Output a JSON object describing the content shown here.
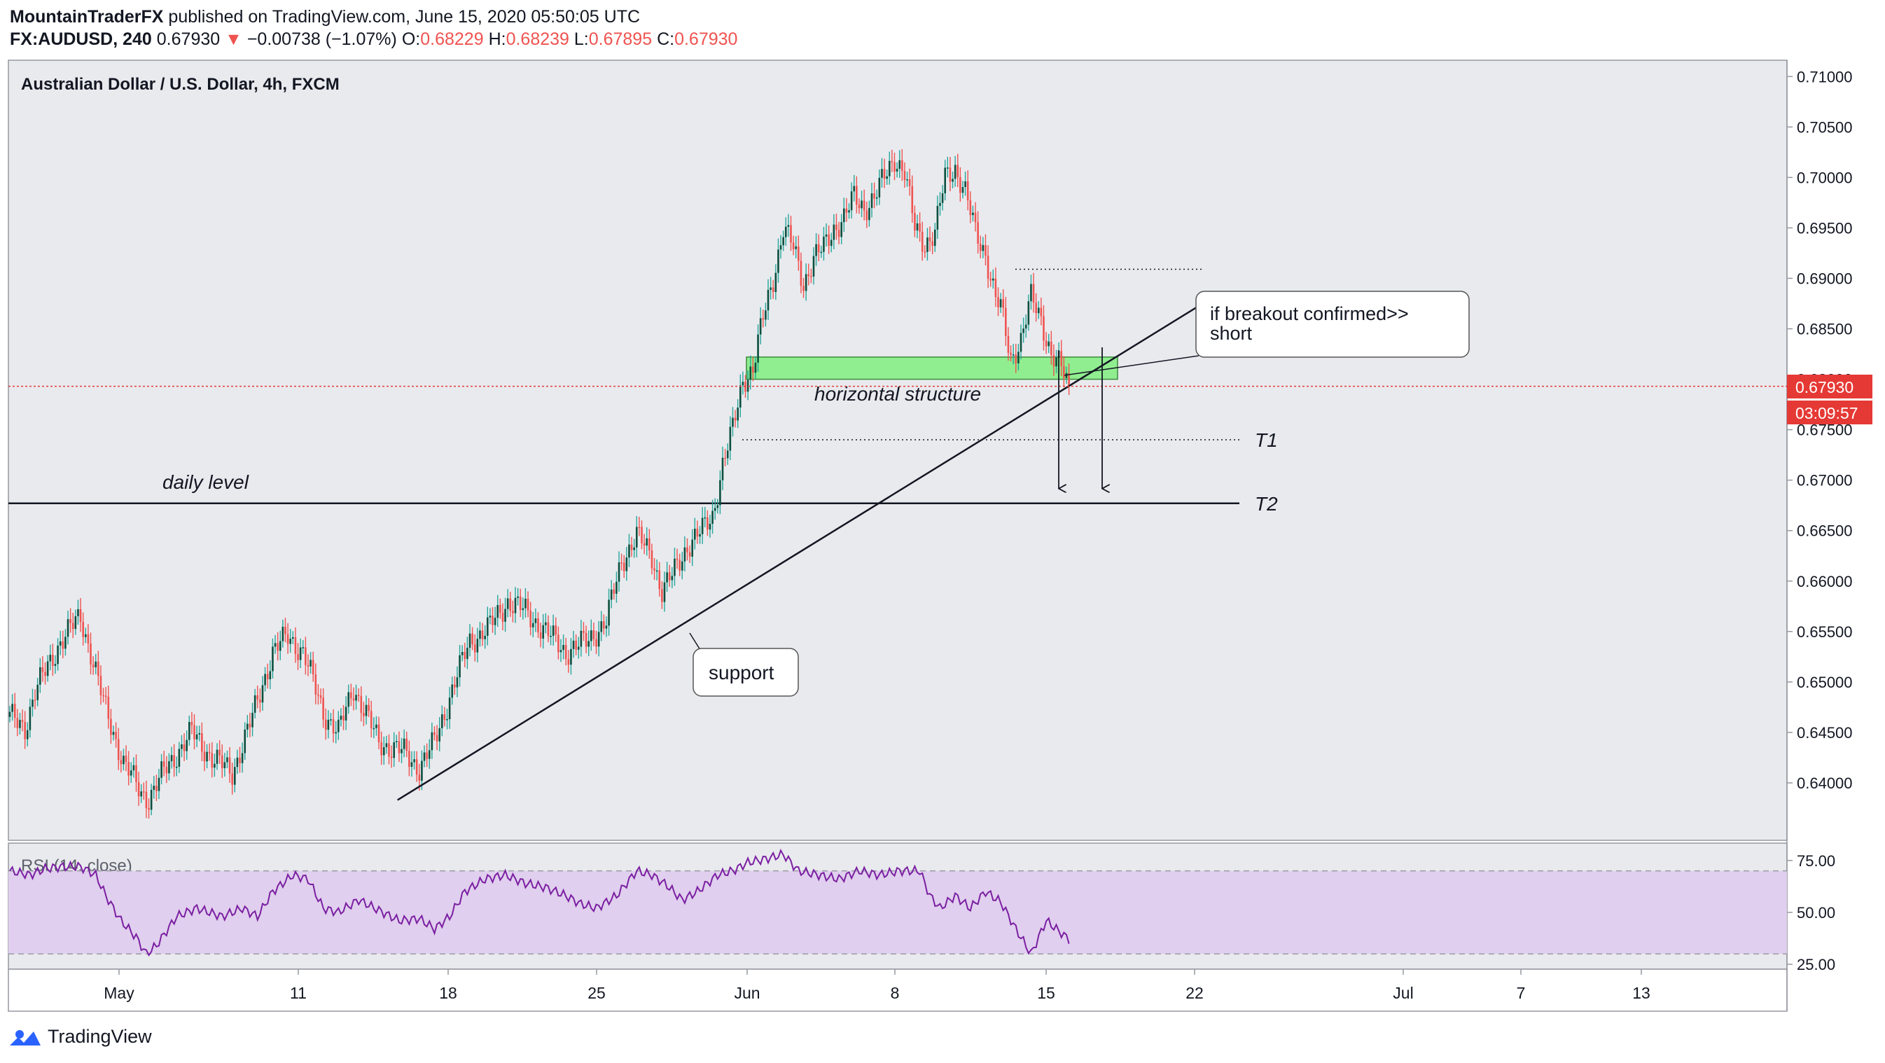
{
  "header": {
    "publisher": "MountainTraderFX",
    "published_text": "published on TradingView.com, June 15, 2020 05:50:05 UTC",
    "symbol": "FX:AUDUSD, 240",
    "last": "0.67930",
    "change": "−0.00738 (−1.07%)",
    "open_label": "O:",
    "open": "0.68229",
    "high_label": "H:",
    "high": "0.68239",
    "low_label": "L:",
    "low": "0.67895",
    "close_label": "C:",
    "close": "0.67930"
  },
  "footer": {
    "brand": "TradingView"
  },
  "colors": {
    "up": "#26a69a",
    "up_body": "#0b4f3e",
    "down": "#ef5350",
    "pane_bg": "#e9eaee",
    "rsi_line": "#7b1fa2",
    "rsi_band": "#e2d3ee",
    "green_zone": "#90ee90"
  },
  "chart_data": [
    {
      "type": "candlestick",
      "title": "Australian Dollar / U.S. Dollar, 4h, FXCM",
      "ylim": [
        0.635,
        0.7112
      ],
      "y_ticks": [
        "0.71000",
        "0.70500",
        "0.70000",
        "0.69500",
        "0.69000",
        "0.68500",
        "0.68000",
        "0.67500",
        "0.67000",
        "0.66500",
        "0.66000",
        "0.65500",
        "0.65000",
        "0.64500",
        "0.64000"
      ],
      "x_ticks": [
        "May",
        "11",
        "18",
        "25",
        "Jun",
        "8",
        "15",
        "22",
        "Jul",
        "7",
        "13"
      ],
      "current_price_label": "0.67930",
      "countdown_label": "03:09:57",
      "current_price": 0.6793,
      "anchors": [
        [
          0,
          0.6465
        ],
        [
          6,
          0.6455
        ],
        [
          10,
          0.649
        ],
        [
          20,
          0.654
        ],
        [
          28,
          0.6565
        ],
        [
          33,
          0.652
        ],
        [
          37,
          0.648
        ],
        [
          45,
          0.642
        ],
        [
          52,
          0.639
        ],
        [
          55,
          0.6385
        ],
        [
          62,
          0.6415
        ],
        [
          72,
          0.645
        ],
        [
          80,
          0.6425
        ],
        [
          88,
          0.641
        ],
        [
          96,
          0.6465
        ],
        [
          104,
          0.653
        ],
        [
          110,
          0.6545
        ],
        [
          116,
          0.653
        ],
        [
          124,
          0.647
        ],
        [
          130,
          0.645
        ],
        [
          136,
          0.6495
        ],
        [
          146,
          0.644
        ],
        [
          156,
          0.643
        ],
        [
          162,
          0.6415
        ],
        [
          168,
          0.644
        ],
        [
          176,
          0.65
        ],
        [
          182,
          0.654
        ],
        [
          190,
          0.6555
        ],
        [
          197,
          0.658
        ],
        [
          204,
          0.657
        ],
        [
          212,
          0.655
        ],
        [
          220,
          0.653
        ],
        [
          228,
          0.654
        ],
        [
          236,
          0.656
        ],
        [
          242,
          0.662
        ],
        [
          248,
          0.6645
        ],
        [
          254,
          0.6625
        ],
        [
          258,
          0.659
        ],
        [
          262,
          0.6605
        ],
        [
          268,
          0.6635
        ],
        [
          274,
          0.665
        ],
        [
          278,
          0.6665
        ],
        [
          282,
          0.6715
        ],
        [
          286,
          0.675
        ],
        [
          290,
          0.68
        ],
        [
          294,
          0.681
        ],
        [
          298,
          0.686
        ],
        [
          302,
          0.69
        ],
        [
          306,
          0.695
        ],
        [
          310,
          0.693
        ],
        [
          314,
          0.6895
        ],
        [
          318,
          0.692
        ],
        [
          322,
          0.693
        ],
        [
          326,
          0.695
        ],
        [
          330,
          0.696
        ],
        [
          334,
          0.698
        ],
        [
          338,
          0.697
        ],
        [
          342,
          0.698
        ],
        [
          346,
          0.7
        ],
        [
          350,
          0.702
        ],
        [
          354,
          0.7005
        ],
        [
          358,
          0.695
        ],
        [
          362,
          0.6935
        ],
        [
          366,
          0.6945
        ],
        [
          370,
          0.7
        ],
        [
          374,
          0.701
        ],
        [
          378,
          0.6985
        ],
        [
          382,
          0.6945
        ],
        [
          386,
          0.6925
        ],
        [
          390,
          0.688
        ],
        [
          392,
          0.687
        ],
        [
          396,
          0.682
        ],
        [
          400,
          0.684
        ],
        [
          404,
          0.688
        ],
        [
          408,
          0.686
        ],
        [
          412,
          0.6825
        ],
        [
          416,
          0.681
        ],
        [
          419,
          0.6793
        ]
      ],
      "overlays": {
        "horizontal_structure_zone": [
          0.68,
          0.6822
        ],
        "daily_level": 0.6677,
        "T1": 0.674,
        "T2": 0.6677,
        "upper_dotted": 0.6909,
        "support_trendline": [
          [
            134,
            0.6383
          ],
          [
            460,
            0.6878
          ]
        ],
        "arrows_to": 0.67
      },
      "annotations": {
        "daily_level": "daily level",
        "horizontal_structure": "horizontal structure",
        "support": "support",
        "callout_line1": "if breakout confirmed>>",
        "callout_line2": "short",
        "t1": "T1",
        "t2": "T2"
      }
    },
    {
      "type": "line",
      "title": "RSI (14, close)",
      "ylim": [
        24,
        82
      ],
      "y_ticks": [
        "75.00",
        "50.00",
        "25.00"
      ],
      "band": [
        30,
        70
      ],
      "anchors": [
        [
          0,
          70
        ],
        [
          8,
          68
        ],
        [
          14,
          71
        ],
        [
          20,
          72
        ],
        [
          28,
          72
        ],
        [
          34,
          68
        ],
        [
          38,
          58
        ],
        [
          44,
          46
        ],
        [
          50,
          38
        ],
        [
          54,
          30
        ],
        [
          58,
          34
        ],
        [
          66,
          48
        ],
        [
          74,
          52
        ],
        [
          84,
          48
        ],
        [
          92,
          52
        ],
        [
          98,
          48
        ],
        [
          104,
          60
        ],
        [
          112,
          68
        ],
        [
          118,
          66
        ],
        [
          124,
          52
        ],
        [
          130,
          50
        ],
        [
          138,
          56
        ],
        [
          146,
          51
        ],
        [
          154,
          46
        ],
        [
          162,
          47
        ],
        [
          168,
          42
        ],
        [
          174,
          48
        ],
        [
          180,
          60
        ],
        [
          188,
          66
        ],
        [
          196,
          68
        ],
        [
          204,
          64
        ],
        [
          212,
          62
        ],
        [
          220,
          58
        ],
        [
          226,
          54
        ],
        [
          232,
          52
        ],
        [
          240,
          58
        ],
        [
          248,
          70
        ],
        [
          254,
          68
        ],
        [
          260,
          63
        ],
        [
          266,
          56
        ],
        [
          272,
          60
        ],
        [
          280,
          68
        ],
        [
          286,
          70
        ],
        [
          292,
          74
        ],
        [
          300,
          76
        ],
        [
          306,
          78
        ],
        [
          312,
          70
        ],
        [
          320,
          68
        ],
        [
          328,
          66
        ],
        [
          336,
          70
        ],
        [
          344,
          68
        ],
        [
          352,
          70
        ],
        [
          360,
          70
        ],
        [
          364,
          58
        ],
        [
          368,
          52
        ],
        [
          374,
          58
        ],
        [
          380,
          52
        ],
        [
          386,
          60
        ],
        [
          392,
          55
        ],
        [
          398,
          42
        ],
        [
          404,
          30
        ],
        [
          410,
          46
        ],
        [
          416,
          40
        ],
        [
          419,
          37
        ]
      ]
    }
  ]
}
